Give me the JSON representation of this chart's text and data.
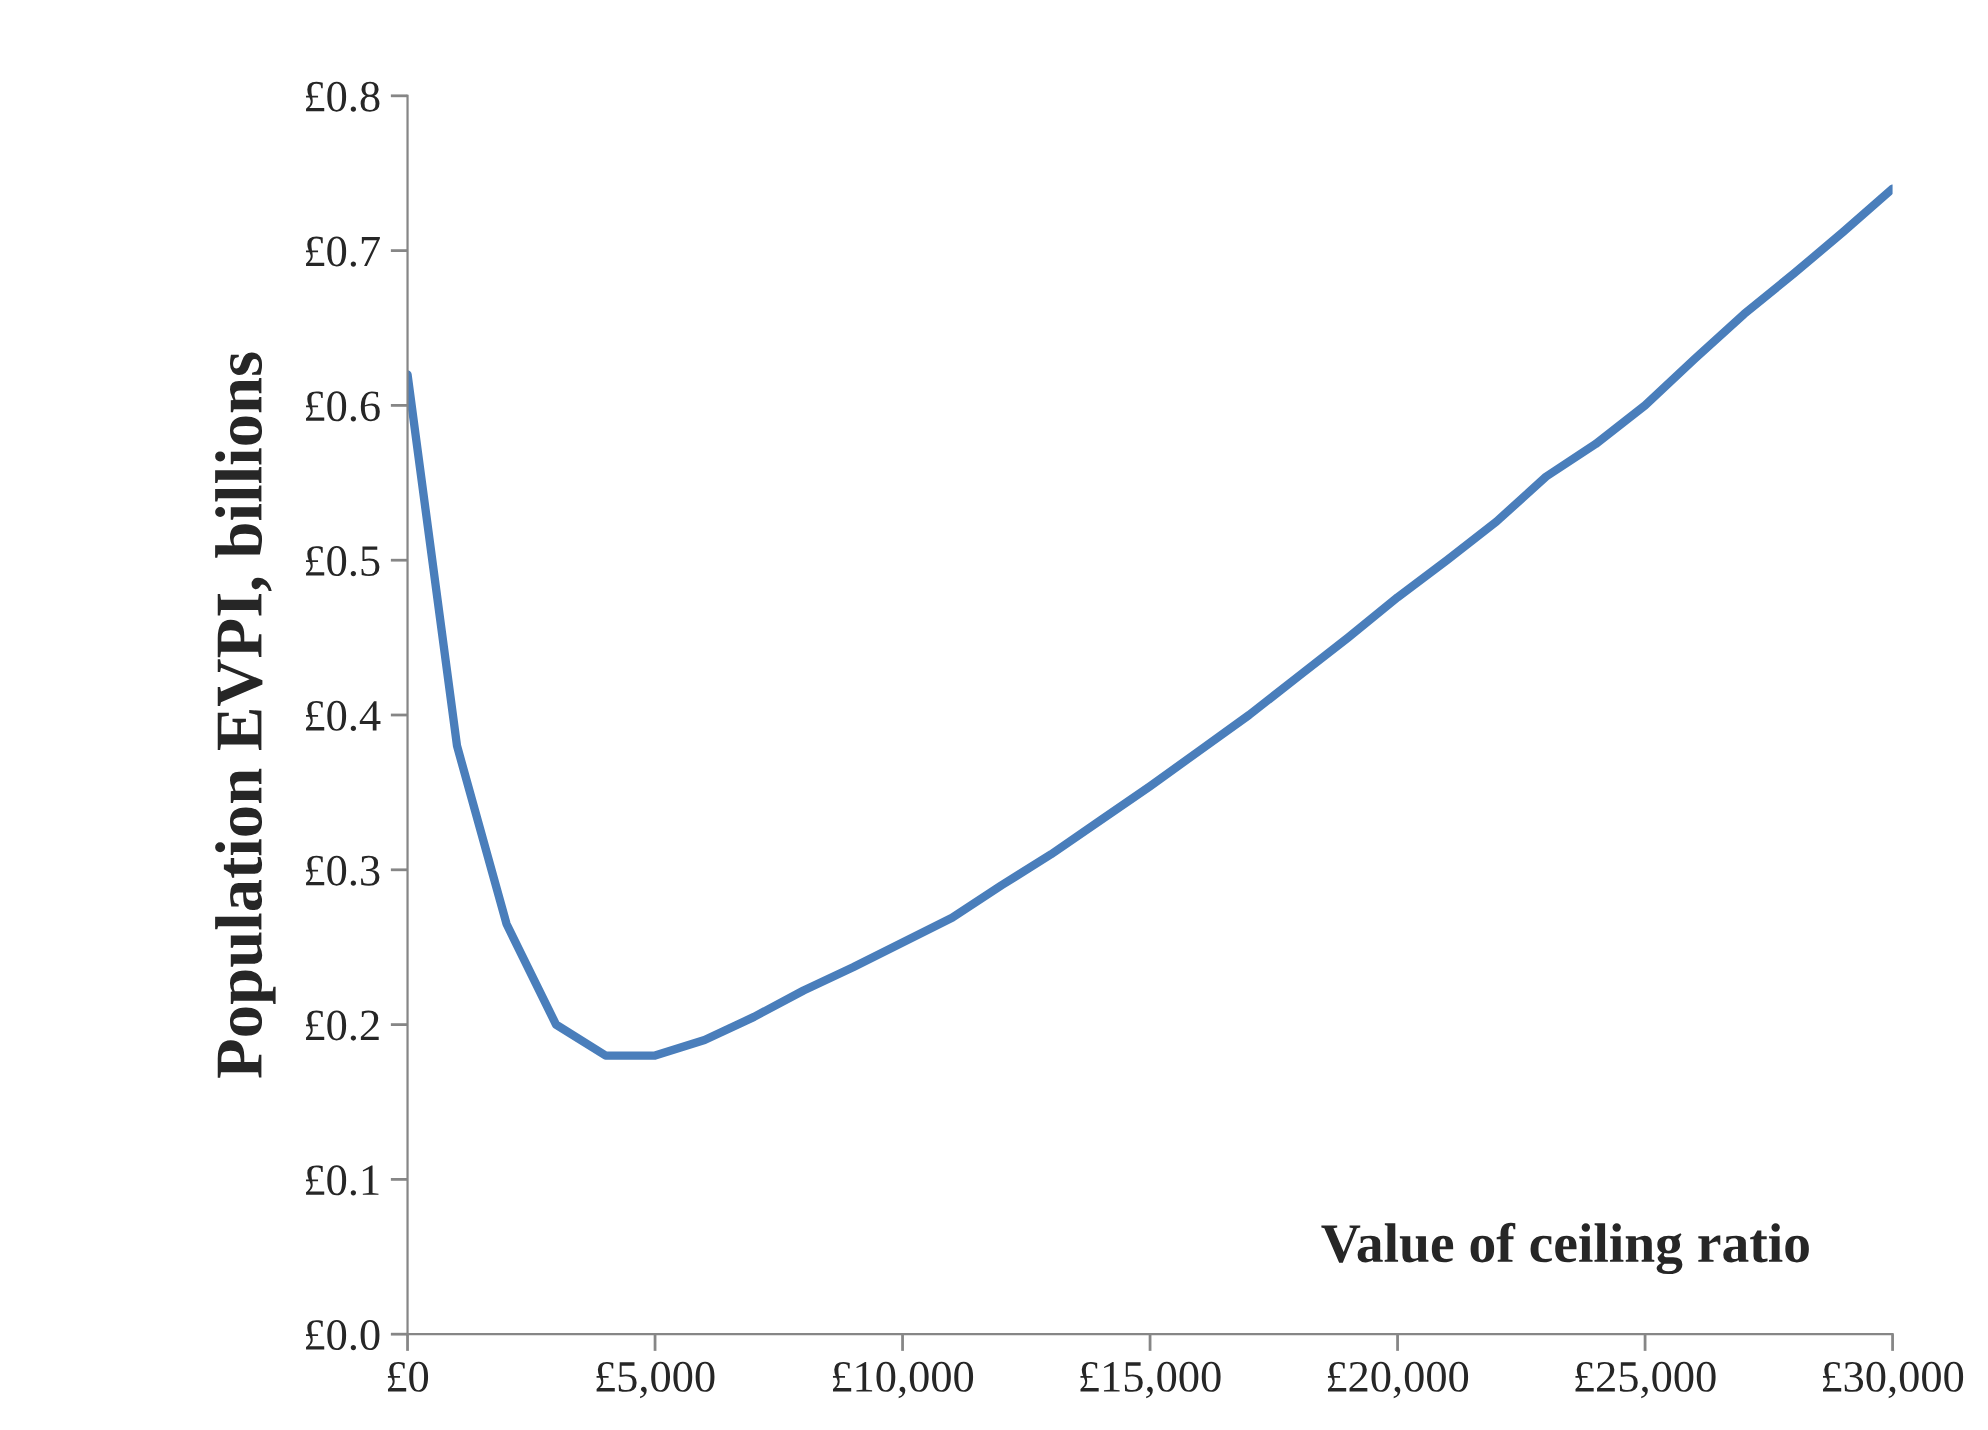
{
  "chart_data": {
    "type": "line",
    "xlabel": "Value of ceiling ratio",
    "ylabel": "Population EVPI, billions",
    "x": [
      0,
      1000,
      2000,
      3000,
      4000,
      5000,
      6000,
      7000,
      8000,
      9000,
      10000,
      11000,
      12000,
      13000,
      14000,
      15000,
      16000,
      17000,
      18000,
      19000,
      20000,
      21000,
      22000,
      23000,
      24000,
      25000,
      26000,
      27000,
      28000,
      29000,
      30000
    ],
    "series": [
      {
        "color": "#4a7ebb",
        "values": [
          0.62,
          0.38,
          0.265,
          0.2,
          0.18,
          0.18,
          0.19,
          0.205,
          0.222,
          0.237,
          0.253,
          0.269,
          0.29,
          0.31,
          0.332,
          0.354,
          0.377,
          0.4,
          0.425,
          0.45,
          0.476,
          0.5,
          0.525,
          0.554,
          0.575,
          0.6,
          0.63,
          0.659,
          0.685,
          0.712,
          0.74
        ]
      }
    ],
    "xlim": [
      0,
      30000
    ],
    "xticks": [
      {
        "value": 0,
        "label": "£0"
      },
      {
        "value": 5000,
        "label": "£5,000"
      },
      {
        "value": 10000,
        "label": "£10,000"
      },
      {
        "value": 15000,
        "label": "£15,000"
      },
      {
        "value": 20000,
        "label": "£20,000"
      },
      {
        "value": 25000,
        "label": "£25,000"
      },
      {
        "value": 30000,
        "label": "£30,000"
      }
    ],
    "ylim": [
      0,
      0.8
    ],
    "yticks": [
      {
        "value": 0,
        "label": "£0.0"
      },
      {
        "value": 0.1,
        "label": "£0.1"
      },
      {
        "value": 0.2,
        "label": "£0.2"
      },
      {
        "value": 0.3,
        "label": "£0.3"
      },
      {
        "value": 0.4,
        "label": "£0.4"
      },
      {
        "value": 0.5,
        "label": "£0.5"
      },
      {
        "value": 0.6,
        "label": "£0.6"
      },
      {
        "value": 0.7,
        "label": "£0.7"
      },
      {
        "value": 0.8,
        "label": "£0.8"
      }
    ],
    "grid": false,
    "legend": false,
    "marker": "none",
    "line_style": "solid"
  }
}
